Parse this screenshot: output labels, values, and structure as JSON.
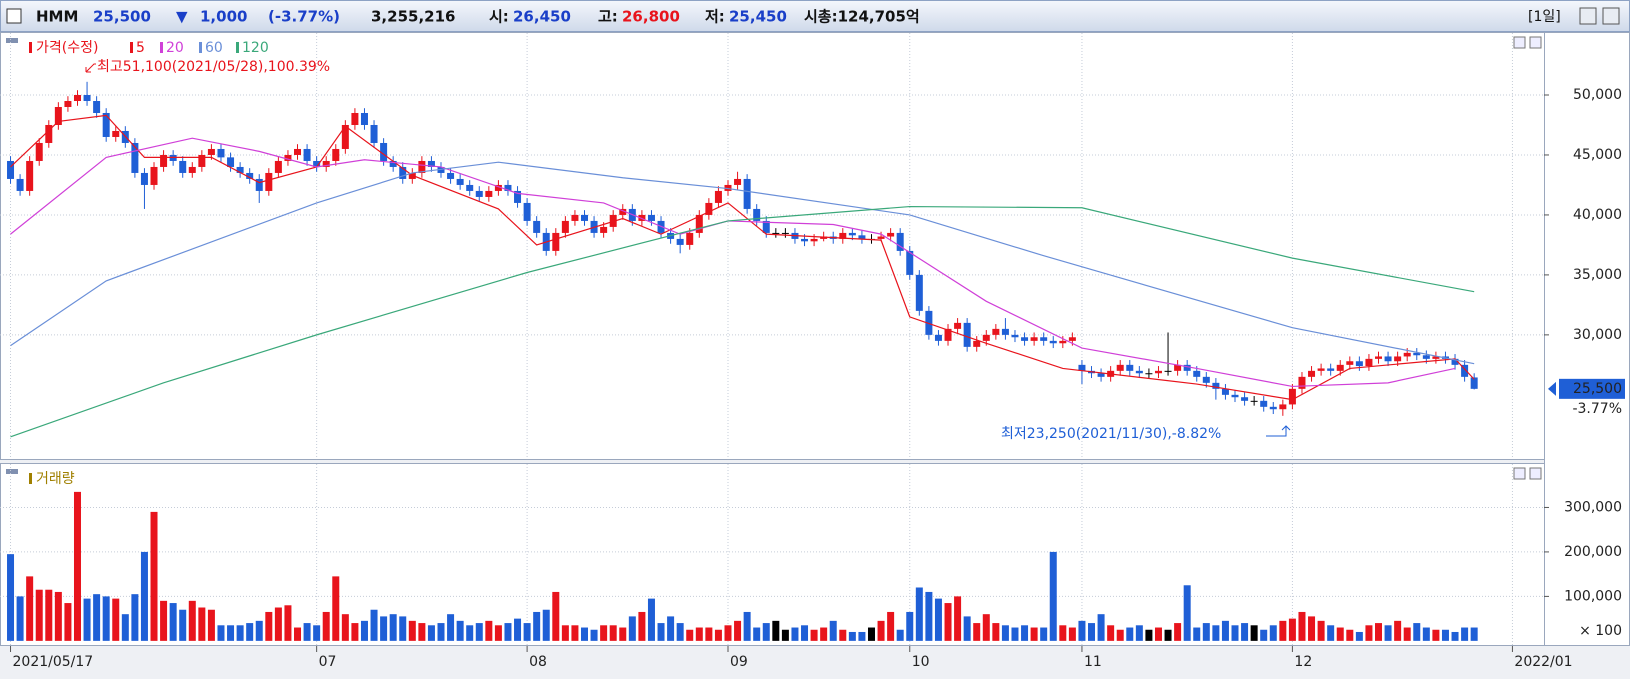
{
  "header": {
    "symbol": "HMM",
    "price": "25,500",
    "direction": "▼",
    "change": "1,000",
    "change_pct": "(-3.77%)",
    "volume": "3,255,216",
    "open_label": "시:",
    "open": "26,450",
    "high_label": "고:",
    "high": "26,800",
    "low_label": "저:",
    "low": "25,450",
    "cap": "시총:124,705억",
    "period": "[1일]"
  },
  "chart_data": [
    {
      "type": "candlestick",
      "legend_title": "가격(수정)",
      "up_color": "#e8141c",
      "down_color": "#1f5fd6",
      "flat_color": "#000000",
      "open": [
        44500,
        43000,
        42000,
        44500,
        46000,
        47500,
        49000,
        49500,
        50000,
        49500,
        48500,
        46500,
        47000,
        46000,
        43500,
        42500,
        44000,
        45000,
        44500,
        43500,
        44000,
        45000,
        45500,
        44800,
        44000,
        43500,
        43000,
        42000,
        43500,
        44500,
        45000,
        45500,
        44500,
        44000,
        44500,
        45500,
        47500,
        48500,
        47500,
        46000,
        44500,
        44000,
        43000,
        43500,
        44500,
        44000,
        43500,
        43000,
        42500,
        42000,
        41500,
        42000,
        42500,
        42000,
        41000,
        39500,
        38500,
        37000,
        38500,
        39500,
        40000,
        39500,
        38500,
        39000,
        40000,
        40500,
        39500,
        40000,
        39500,
        38500,
        38000,
        37500,
        38500,
        40000,
        41000,
        42000,
        42500,
        43000,
        40500,
        39500,
        38500,
        38500,
        38500,
        38000,
        37800,
        38000,
        38200,
        38000,
        38500,
        38300,
        38000,
        38000,
        38200,
        38500,
        37000,
        35000,
        32000,
        30000,
        29500,
        30500,
        31000,
        29000,
        29500,
        30000,
        30500,
        30000,
        29800,
        29500,
        29800,
        29500,
        29300,
        29500,
        27500,
        27000,
        26800,
        26500,
        27000,
        27500,
        27000,
        26800,
        26800,
        27000,
        27000,
        27500,
        27000,
        26500,
        26000,
        25500,
        25000,
        24800,
        24500,
        24500,
        24000,
        23800,
        24200,
        25500,
        26500,
        27000,
        27200,
        27000,
        27500,
        27800,
        27400,
        28000,
        28200,
        27800,
        28200,
        28500,
        28300,
        28000,
        28200,
        28000,
        27500,
        26450
      ],
      "high": [
        44900,
        43400,
        44900,
        46400,
        47900,
        49400,
        49900,
        50400,
        51100,
        49900,
        48900,
        47400,
        47400,
        46400,
        43900,
        44400,
        45400,
        45400,
        44900,
        44400,
        45400,
        45900,
        45900,
        45200,
        44400,
        43900,
        43400,
        43900,
        44900,
        45400,
        45900,
        45900,
        44900,
        44900,
        45900,
        47900,
        48900,
        48900,
        47900,
        46400,
        44900,
        44400,
        43900,
        44900,
        44900,
        44400,
        43900,
        43400,
        42900,
        42400,
        42400,
        42900,
        42900,
        42400,
        41400,
        39900,
        38900,
        38900,
        39900,
        40400,
        40400,
        39900,
        39400,
        40400,
        40900,
        40900,
        40400,
        40400,
        39900,
        38900,
        38400,
        38900,
        40400,
        41400,
        42400,
        42900,
        43600,
        43400,
        40900,
        39900,
        38900,
        38900,
        38900,
        38400,
        38400,
        38600,
        38600,
        38900,
        38900,
        38700,
        38400,
        38600,
        38900,
        38900,
        37400,
        35400,
        32400,
        30400,
        30900,
        31400,
        31400,
        29900,
        30400,
        30900,
        31400,
        30400,
        30200,
        30200,
        30200,
        29900,
        29900,
        30200,
        27900,
        27400,
        27200,
        27400,
        27900,
        27900,
        27400,
        27200,
        27400,
        30200,
        27900,
        27900,
        27400,
        26900,
        26400,
        25900,
        25400,
        25200,
        24900,
        24900,
        24400,
        24600,
        25900,
        26900,
        27400,
        27600,
        27600,
        27900,
        28200,
        28200,
        28400,
        28600,
        28600,
        28600,
        28900,
        28900,
        28700,
        28600,
        28600,
        28400,
        27900,
        26800
      ],
      "low": [
        42600,
        41600,
        41600,
        44100,
        45600,
        47100,
        48600,
        49100,
        49100,
        48100,
        46100,
        46100,
        45600,
        43100,
        40500,
        42100,
        43600,
        44100,
        43100,
        43100,
        43600,
        44600,
        44400,
        43600,
        43100,
        42600,
        41000,
        41600,
        43100,
        44100,
        44600,
        44100,
        43600,
        43600,
        44100,
        45100,
        47100,
        47100,
        45600,
        44100,
        43600,
        42600,
        42600,
        43100,
        43600,
        43100,
        42600,
        42100,
        41600,
        41100,
        41100,
        41600,
        41600,
        40600,
        39100,
        38100,
        36600,
        36600,
        38100,
        39100,
        39100,
        38100,
        38100,
        38600,
        39600,
        39100,
        39100,
        39100,
        38100,
        37600,
        36800,
        37100,
        38100,
        39600,
        40600,
        41600,
        42100,
        40100,
        39100,
        38100,
        38100,
        38100,
        37600,
        37400,
        37400,
        37800,
        37600,
        37600,
        37900,
        37600,
        37600,
        37800,
        37800,
        36600,
        34600,
        31600,
        29600,
        29100,
        29100,
        30100,
        28600,
        28600,
        29100,
        29600,
        29600,
        29400,
        29100,
        29100,
        29100,
        28900,
        28900,
        29100,
        25900,
        26400,
        26100,
        26100,
        26600,
        26600,
        26400,
        26400,
        26400,
        26600,
        26600,
        26600,
        26100,
        25600,
        24600,
        24600,
        24400,
        24100,
        24100,
        23600,
        23400,
        23250,
        23800,
        25100,
        26100,
        26600,
        26600,
        26600,
        27100,
        27000,
        27000,
        27600,
        27400,
        27400,
        27800,
        27900,
        27600,
        27600,
        27600,
        27100,
        26100,
        25450
      ],
      "close": [
        43000,
        42000,
        44500,
        46000,
        47500,
        49000,
        49500,
        50000,
        49500,
        48500,
        46500,
        47000,
        46000,
        43500,
        42500,
        44000,
        45000,
        44500,
        43500,
        44000,
        45000,
        45500,
        44800,
        44000,
        43500,
        43000,
        42000,
        43500,
        44500,
        45000,
        45500,
        44500,
        44000,
        44500,
        45500,
        47500,
        48500,
        47500,
        46000,
        44500,
        44000,
        43000,
        43500,
        44500,
        44000,
        43500,
        43000,
        42500,
        42000,
        41500,
        42000,
        42500,
        42000,
        41000,
        39500,
        38500,
        37000,
        38500,
        39500,
        40000,
        39500,
        38500,
        39000,
        40000,
        40500,
        39500,
        40000,
        39500,
        38500,
        38000,
        37500,
        38500,
        40000,
        41000,
        42000,
        42500,
        43000,
        40500,
        39500,
        38500,
        38500,
        38500,
        38000,
        37800,
        38000,
        38200,
        38000,
        38500,
        38300,
        38000,
        38000,
        38200,
        38500,
        37000,
        35000,
        32000,
        30000,
        29500,
        30500,
        31000,
        29000,
        29500,
        30000,
        30500,
        30000,
        29800,
        29500,
        29800,
        29500,
        29300,
        29500,
        29800,
        27000,
        26800,
        26500,
        27000,
        27500,
        27000,
        26800,
        26800,
        27000,
        27000,
        27500,
        27000,
        26500,
        26000,
        25500,
        25000,
        24800,
        24500,
        24500,
        24000,
        23800,
        24200,
        25500,
        26500,
        27000,
        27200,
        27000,
        27500,
        27800,
        27400,
        28000,
        28200,
        27800,
        28200,
        28500,
        28300,
        28000,
        28200,
        28000,
        27500,
        26500,
        25500
      ],
      "series": [
        {
          "name": "5",
          "color": "#e8141c",
          "x": [
            0,
            5,
            10,
            14,
            21,
            26,
            32,
            35,
            42,
            51,
            55,
            64,
            68,
            75,
            79,
            91,
            94,
            102,
            110,
            124,
            134,
            140,
            151,
            153
          ],
          "values": [
            44000,
            47800,
            48300,
            44800,
            44800,
            42700,
            44000,
            47400,
            43300,
            40500,
            37500,
            39700,
            38400,
            41000,
            38400,
            37900,
            31500,
            29300,
            27200,
            25900,
            24600,
            27200,
            28000,
            26300
          ]
        },
        {
          "name": "20",
          "color": "#d040d8",
          "x": [
            0,
            10,
            19,
            26,
            32,
            37,
            45,
            53,
            62,
            70,
            75,
            86,
            91,
            102,
            112,
            124,
            134,
            144,
            151
          ],
          "values": [
            38400,
            44800,
            46400,
            45300,
            44000,
            44600,
            44000,
            41800,
            41000,
            38400,
            39500,
            39200,
            38400,
            32800,
            28900,
            27200,
            25700,
            26000,
            27200
          ]
        },
        {
          "name": "60",
          "color": "#6a8fd8",
          "x": [
            0,
            10,
            32,
            42,
            51,
            64,
            75,
            94,
            108,
            134,
            153
          ],
          "values": [
            29100,
            34500,
            41000,
            43500,
            44400,
            43100,
            42200,
            40000,
            36600,
            30600,
            27600
          ]
        },
        {
          "name": "120",
          "color": "#3aa87a",
          "x": [
            0,
            16,
            32,
            54,
            75,
            94,
            112,
            134,
            153
          ],
          "values": [
            21500,
            26000,
            30000,
            35200,
            39500,
            40700,
            40600,
            36400,
            33600
          ]
        }
      ],
      "xlim": [
        -1.1,
        160.3
      ],
      "ylim": [
        19650,
        55170
      ],
      "yticks": [
        {
          "value": 30000,
          "label": "30,000"
        },
        {
          "value": 35000,
          "label": "35,000"
        },
        {
          "value": 40000,
          "label": "40,000"
        },
        {
          "value": 45000,
          "label": "45,000"
        },
        {
          "value": 50000,
          "label": "50,000"
        }
      ],
      "grid": true,
      "annotations": [
        "최고51,100(2021/05/28),100.39%",
        "최저23,250(2021/11/30),-8.82%"
      ],
      "last_label": "25,500",
      "last_change": "-3.77%"
    },
    {
      "type": "bar",
      "legend_title": "거래량",
      "legend_color": "#a08000",
      "values": [
        195000,
        100000,
        145000,
        115000,
        115000,
        110000,
        85000,
        335000,
        95000,
        105000,
        100000,
        95000,
        60000,
        105000,
        200000,
        290000,
        90000,
        85000,
        70000,
        90000,
        75000,
        70000,
        35000,
        35000,
        35000,
        40000,
        45000,
        65000,
        75000,
        80000,
        30000,
        40000,
        35000,
        65000,
        145000,
        60000,
        40000,
        45000,
        70000,
        55000,
        60000,
        55000,
        45000,
        40000,
        35000,
        40000,
        60000,
        45000,
        35000,
        40000,
        45000,
        35000,
        40000,
        50000,
        40000,
        65000,
        70000,
        110000,
        35000,
        35000,
        30000,
        25000,
        35000,
        35000,
        30000,
        55000,
        65000,
        95000,
        40000,
        55000,
        40000,
        25000,
        30000,
        30000,
        25000,
        35000,
        45000,
        65000,
        30000,
        40000,
        45000,
        25000,
        30000,
        35000,
        25000,
        30000,
        45000,
        25000,
        20000,
        20000,
        30000,
        45000,
        65000,
        25000,
        65000,
        120000,
        110000,
        95000,
        85000,
        100000,
        55000,
        40000,
        60000,
        40000,
        35000,
        30000,
        35000,
        30000,
        30000,
        200000,
        35000,
        30000,
        45000,
        40000,
        60000,
        35000,
        25000,
        30000,
        35000,
        25000,
        30000,
        25000,
        40000,
        125000,
        30000,
        40000,
        35000,
        45000,
        35000,
        40000,
        35000,
        25000,
        35000,
        45000,
        50000,
        65000,
        55000,
        45000,
        35000,
        30000,
        25000,
        20000,
        35000,
        40000,
        35000,
        45000,
        30000,
        40000,
        30000,
        25000,
        25000,
        20000,
        30000,
        30000
      ],
      "xlim": [
        -1.1,
        160.3
      ],
      "ylim": [
        -9300,
        397700
      ],
      "yticks": [
        {
          "value": 100000,
          "label": "100,000"
        },
        {
          "value": 200000,
          "label": "200,000"
        },
        {
          "value": 300000,
          "label": "300,000"
        }
      ],
      "xticks": [
        {
          "value": 0,
          "label": "2021/05/17"
        },
        {
          "value": 32,
          "label": "07"
        },
        {
          "value": 54,
          "label": "08"
        },
        {
          "value": 75,
          "label": "09"
        },
        {
          "value": 94,
          "label": "10"
        },
        {
          "value": 112,
          "label": "11"
        },
        {
          "value": 134,
          "label": "12"
        },
        {
          "value": 157,
          "label": "2022/01"
        }
      ],
      "grid": true,
      "unit_label": "× 100"
    }
  ]
}
